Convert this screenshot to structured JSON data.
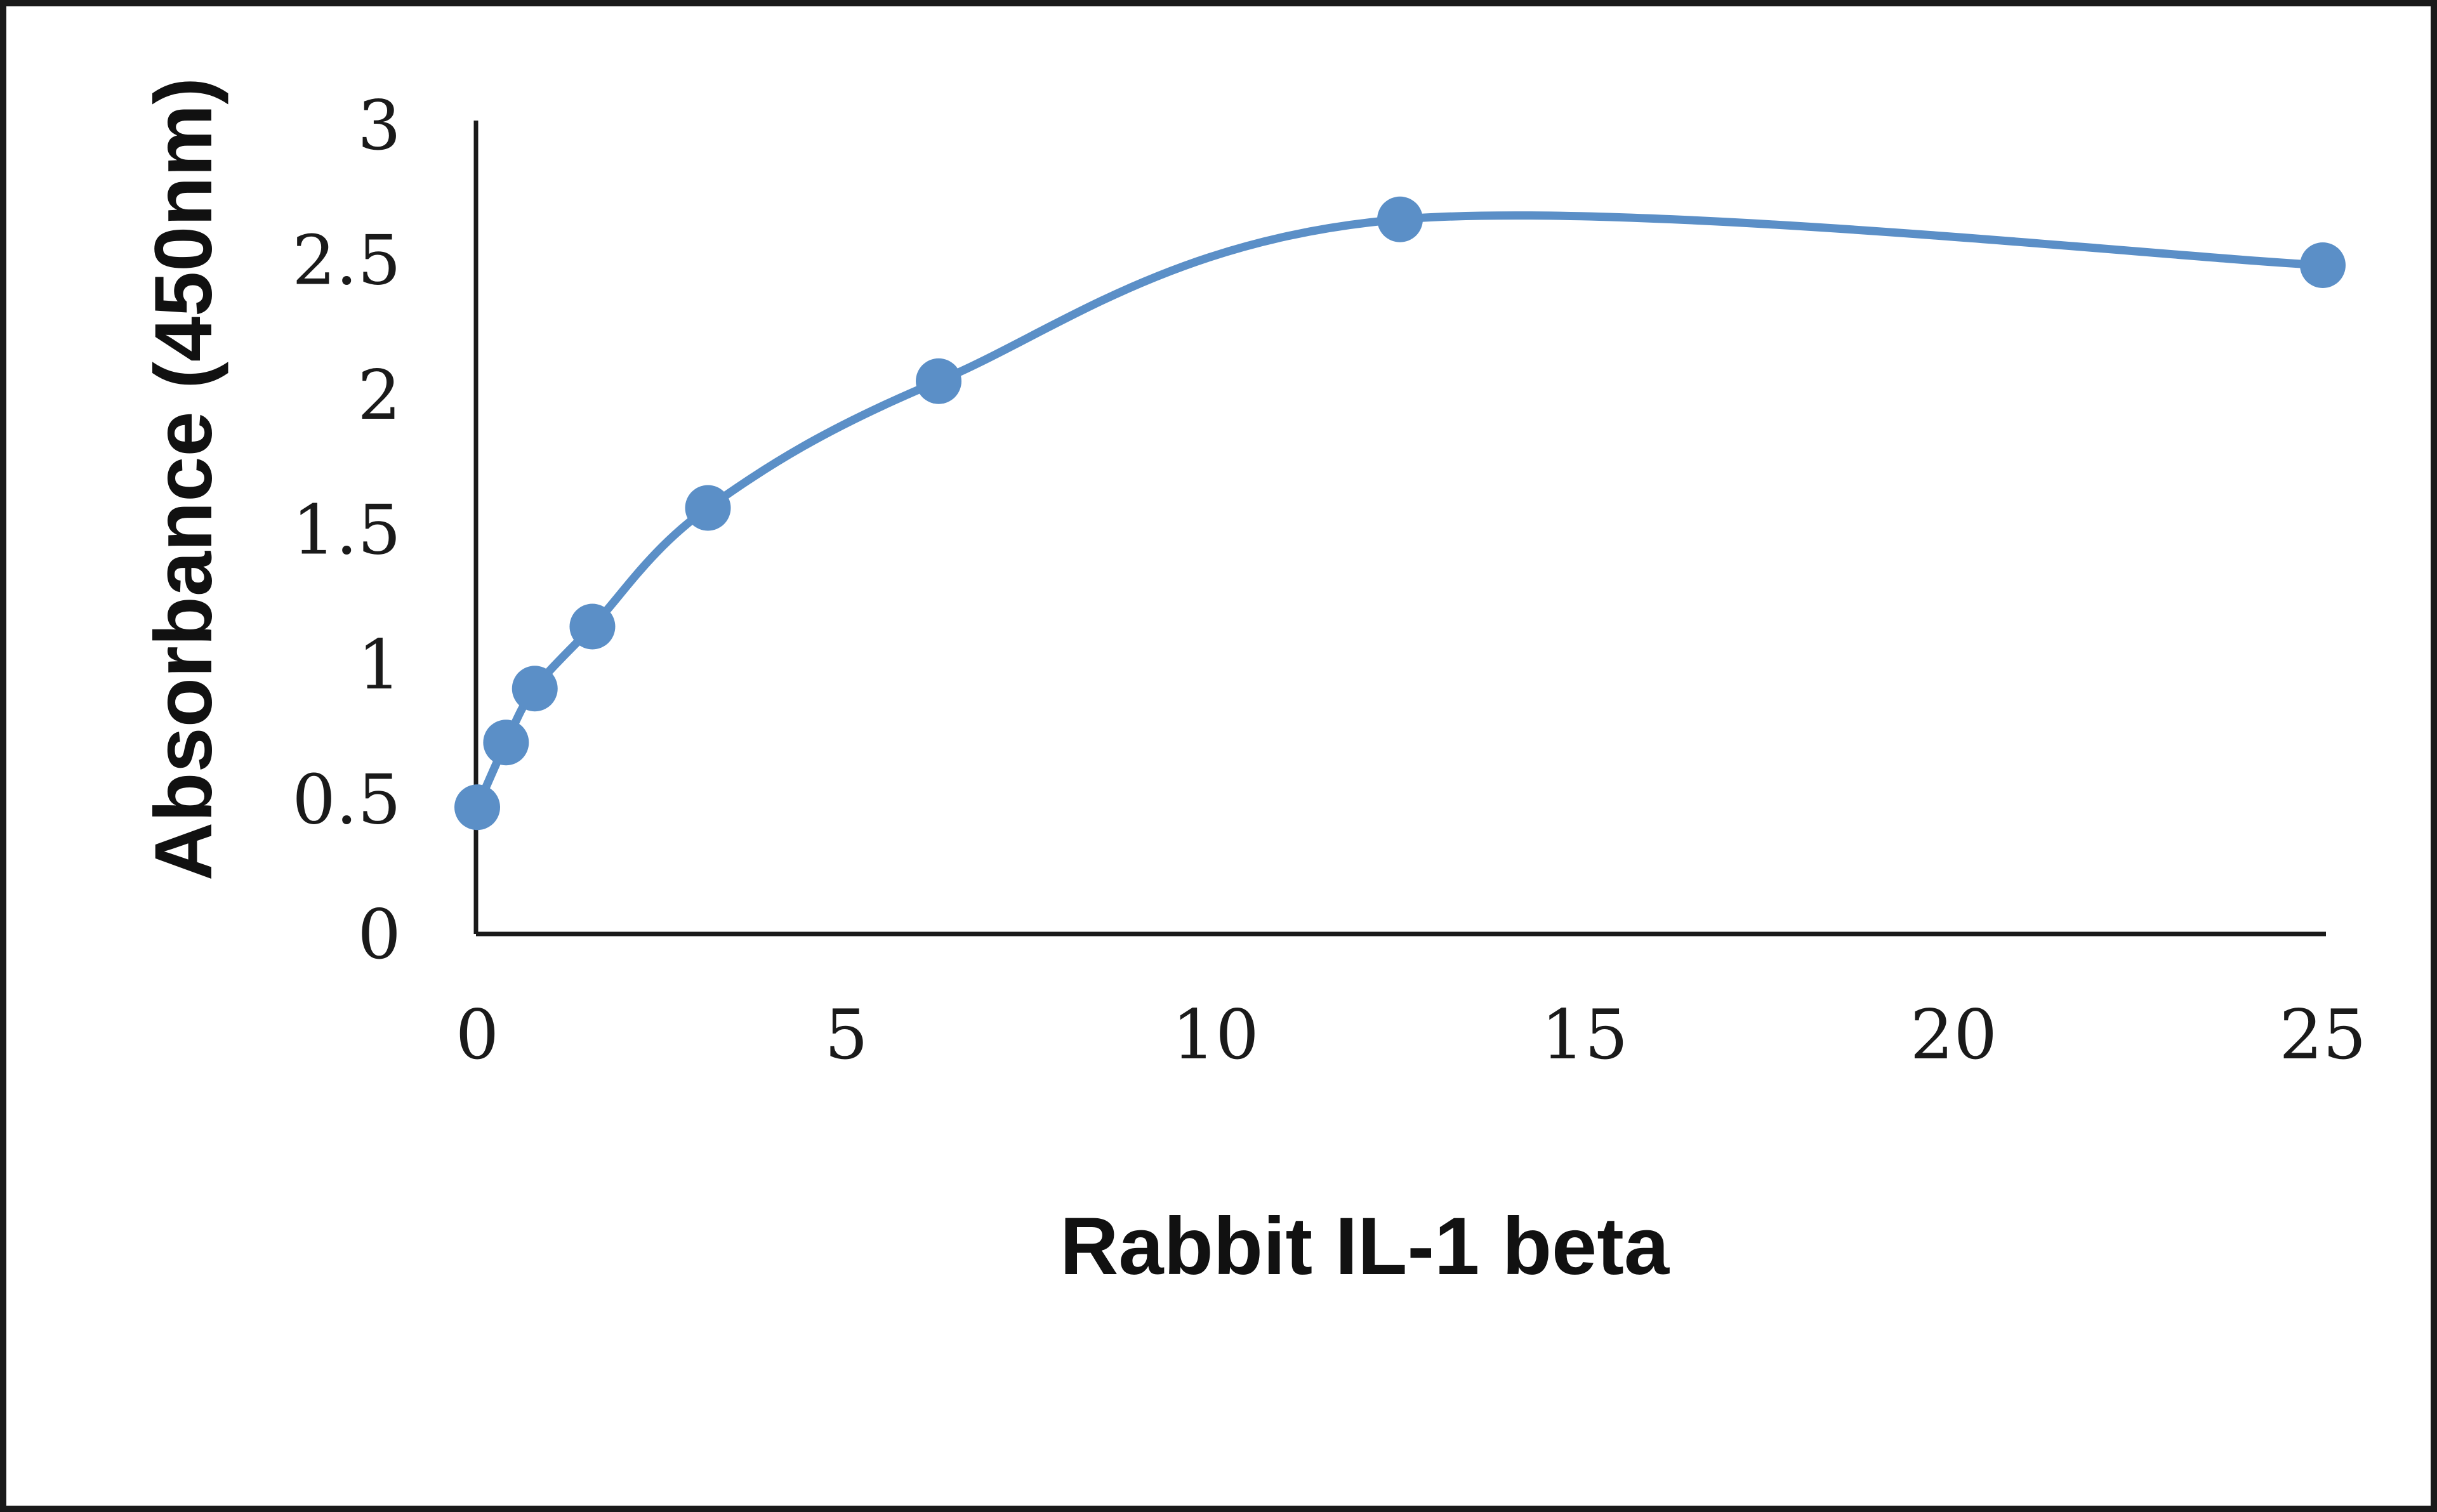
{
  "chart_data": {
    "type": "line",
    "title": "",
    "xlabel": "Rabbit IL-1 beta",
    "ylabel": "Absorbance (450nm)",
    "xlim": [
      0,
      25
    ],
    "ylim": [
      0,
      3
    ],
    "x_ticks": [
      "0",
      "5",
      "10",
      "15",
      "20",
      "25"
    ],
    "y_ticks": [
      "0",
      "0.5",
      "1",
      "1.5",
      "2",
      "2.5",
      "3"
    ],
    "smoothed": true,
    "markers": true,
    "grid": false,
    "legend": "none",
    "series": [
      {
        "color": "#5b8fc7",
        "x": [
          0,
          0.39,
          0.78,
          1.56,
          3.125,
          6.25,
          12.5,
          25
        ],
        "y": [
          0.47,
          0.71,
          0.91,
          1.14,
          1.58,
          2.05,
          2.65,
          2.48
        ]
      }
    ]
  }
}
